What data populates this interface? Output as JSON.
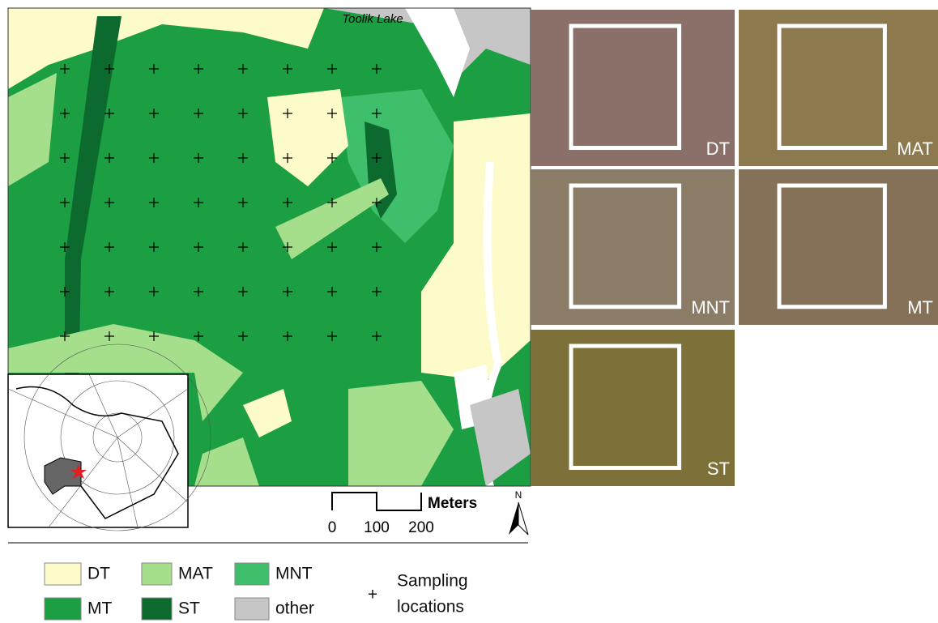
{
  "map": {
    "label": "Toolik Lake"
  },
  "scale_bar": {
    "unit": "Meters",
    "ticks": [
      "0",
      "100",
      "200"
    ],
    "north": "N"
  },
  "legend": [
    {
      "name": "DT",
      "color": "#fdfbc9"
    },
    {
      "name": "MAT",
      "color": "#a6df8c"
    },
    {
      "name": "MNT",
      "color": "#3fbf6b"
    },
    {
      "name": "MT",
      "color": "#1c9e42"
    },
    {
      "name": "ST",
      "color": "#0c6a2f"
    },
    {
      "name": "other",
      "color": "#c6c6c6"
    }
  ],
  "sampling": {
    "symbol": "+",
    "label": [
      "Sampling",
      "locations"
    ]
  },
  "photos": [
    "DT",
    "MAT",
    "MNT",
    "MT",
    "ST"
  ]
}
